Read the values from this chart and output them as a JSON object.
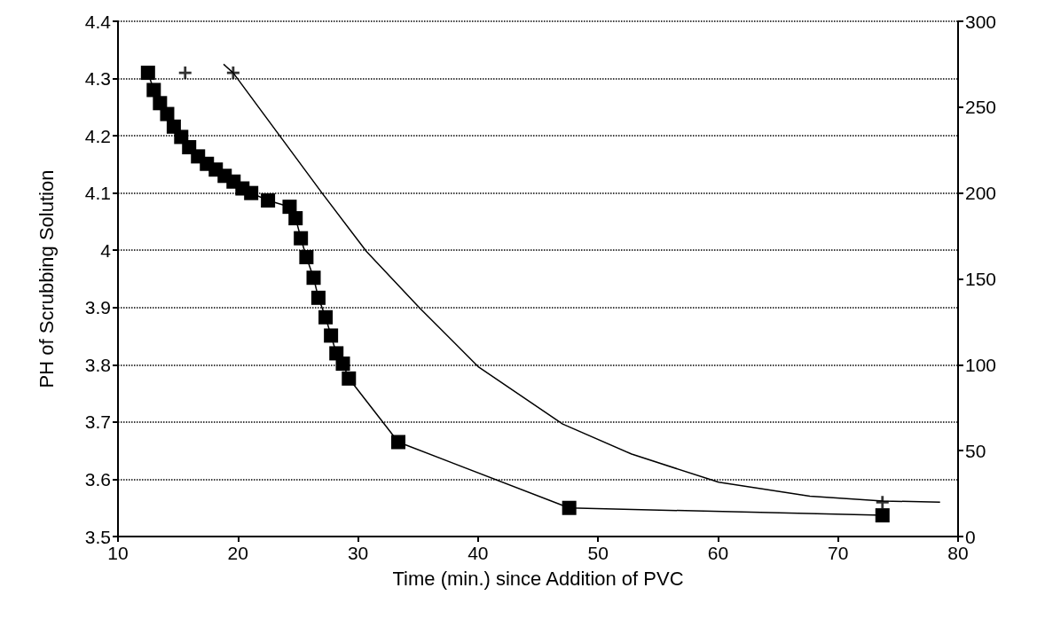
{
  "chart_data": {
    "type": "line",
    "xlabel": "Time (min.) since Addition of PVC",
    "ylabel": "PH of Scrubbing Solution",
    "xlim": [
      10,
      80
    ],
    "xticks": [
      10,
      20,
      30,
      40,
      50,
      60,
      70,
      80
    ],
    "ylim": [
      3.5,
      4.4
    ],
    "yticks": [
      3.5,
      3.6,
      3.7,
      3.8,
      3.9,
      4,
      4.1,
      4.2,
      4.3,
      4.4
    ],
    "y2lim": [
      0,
      300
    ],
    "y2ticks": [
      0,
      50,
      100,
      150,
      200,
      250,
      300
    ],
    "grid": "y",
    "series": [
      {
        "marker": "square",
        "color": "#000000",
        "x": [
          12.5,
          12.98,
          13.5,
          14.1,
          14.65,
          15.27,
          15.93,
          16.67,
          17.41,
          18.15,
          18.89,
          19.63,
          20.37,
          21.1,
          22.5,
          24.3,
          24.8,
          25.24,
          25.7,
          26.3,
          26.7,
          27.3,
          27.75,
          28.2,
          28.74,
          29.24,
          33.36,
          47.6,
          73.7
        ],
        "values": [
          4.31,
          4.28,
          4.257,
          4.238,
          4.216,
          4.198,
          4.18,
          4.164,
          4.151,
          4.141,
          4.13,
          4.12,
          4.108,
          4.1,
          4.087,
          4.076,
          4.056,
          4.021,
          3.988,
          3.952,
          3.917,
          3.883,
          3.851,
          3.82,
          3.802,
          3.776,
          3.665,
          3.55,
          3.537
        ]
      },
      {
        "type": "scatter",
        "marker": "cross",
        "axis": "y2",
        "color": "#000000",
        "x": [
          15.6,
          19.6,
          73.7
        ],
        "values": [
          270,
          270,
          20
        ]
      },
      {
        "type": "line",
        "marker": "none",
        "axis": "y2",
        "color": "#000000",
        "x": [
          18.8,
          19.6,
          23.3,
          27.0,
          30.7,
          35.15,
          40.0,
          47.05,
          52.8,
          60.06,
          67.65,
          73.75,
          78.5
        ],
        "values": [
          275,
          270,
          235,
          200,
          166,
          133,
          99,
          65.5,
          48,
          31.6,
          23.5,
          20.7,
          20
        ]
      }
    ]
  }
}
